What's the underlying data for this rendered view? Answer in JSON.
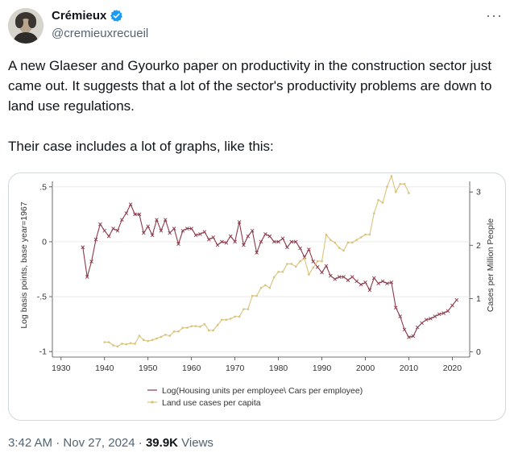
{
  "author": {
    "name": "Crémieux",
    "handle": "@cremieuxrecueil",
    "avatar_icon": "portrait-avatar",
    "verified_icon": "verified-badge-icon"
  },
  "more_icon": "more-options-icon",
  "tweet": {
    "paragraph1": "A new Glaeser and Gyourko paper on productivity in the construction sector just came out. It suggests that a lot of the sector's productivity problems are down to land use regulations.",
    "paragraph2": "Their case includes a lot of graphs, like this:"
  },
  "meta": {
    "time": "3:42 AM",
    "sep": "·",
    "date": "Nov 27, 2024",
    "views_count": "39.9K",
    "views_label": "Views"
  },
  "colors": {
    "series1": "#8b3a4a",
    "series2": "#d9c37a",
    "verified": "#1d9bf0"
  },
  "chart_data": {
    "type": "line",
    "left_axis": {
      "label": "Log basis points, base year=1967",
      "ticks": [
        ".5",
        "0",
        "-.5",
        "-1"
      ],
      "values": [
        0.5,
        0,
        -0.5,
        -1
      ],
      "range": [
        -1.05,
        0.55
      ]
    },
    "right_axis": {
      "label": "Cases per Million People",
      "ticks": [
        "3",
        "2",
        "1",
        "0"
      ],
      "values": [
        3,
        2,
        1,
        0
      ],
      "range": [
        -0.1,
        3.2
      ]
    },
    "x_axis": {
      "ticks": [
        "1930",
        "1940",
        "1950",
        "1960",
        "1970",
        "1980",
        "1990",
        "2000",
        "2010",
        "2020"
      ],
      "values": [
        1930,
        1940,
        1950,
        1960,
        1970,
        1980,
        1990,
        2000,
        2010,
        2020
      ],
      "range": [
        1928,
        2024
      ]
    },
    "legend_position": "bottom",
    "series": [
      {
        "name": "Log(Housing units per employee\\ Cars per employee)",
        "axis": "left",
        "marker": "x",
        "x": [
          1935,
          1936,
          1937,
          1938,
          1939,
          1940,
          1941,
          1942,
          1943,
          1944,
          1945,
          1946,
          1947,
          1948,
          1949,
          1950,
          1951,
          1952,
          1953,
          1954,
          1955,
          1956,
          1957,
          1958,
          1959,
          1960,
          1961,
          1962,
          1963,
          1964,
          1965,
          1966,
          1967,
          1968,
          1969,
          1970,
          1971,
          1972,
          1973,
          1974,
          1975,
          1976,
          1977,
          1978,
          1979,
          1980,
          1981,
          1982,
          1983,
          1984,
          1985,
          1986,
          1987,
          1988,
          1989,
          1990,
          1991,
          1992,
          1993,
          1994,
          1995,
          1996,
          1997,
          1998,
          1999,
          2000,
          2001,
          2002,
          2003,
          2004,
          2005,
          2006,
          2007,
          2008,
          2009,
          2010,
          2011,
          2012,
          2013,
          2014,
          2015,
          2016,
          2017,
          2018,
          2019,
          2020,
          2021
        ],
        "y": [
          -0.05,
          -0.32,
          -0.18,
          0.02,
          0.16,
          0.1,
          0.05,
          0.12,
          0.1,
          0.2,
          0.26,
          0.34,
          0.25,
          0.25,
          0.08,
          0.14,
          0.06,
          0.2,
          0.1,
          0.2,
          0.08,
          0.12,
          -0.02,
          0.1,
          0.12,
          0.12,
          0.06,
          0.07,
          0.09,
          0.02,
          0.04,
          -0.03,
          0.0,
          -0.01,
          0.05,
          0.0,
          0.18,
          -0.03,
          0.05,
          0.1,
          -0.1,
          0.0,
          0.07,
          0.05,
          0.0,
          0.0,
          0.03,
          -0.05,
          0.0,
          0.0,
          -0.06,
          -0.14,
          -0.07,
          -0.18,
          -0.23,
          -0.28,
          -0.22,
          -0.31,
          -0.34,
          -0.32,
          -0.32,
          -0.35,
          -0.32,
          -0.36,
          -0.39,
          -0.37,
          -0.44,
          -0.33,
          -0.38,
          -0.36,
          -0.38,
          -0.37,
          -0.6,
          -0.68,
          -0.8,
          -0.87,
          -0.86,
          -0.78,
          -0.74,
          -0.71,
          -0.7,
          -0.68,
          -0.66,
          -0.65,
          -0.63,
          -0.58,
          -0.53
        ]
      },
      {
        "name": "Land use cases per capita",
        "axis": "right",
        "marker": "dot",
        "x": [
          1940,
          1941,
          1942,
          1943,
          1944,
          1945,
          1946,
          1947,
          1948,
          1949,
          1950,
          1951,
          1952,
          1953,
          1954,
          1955,
          1956,
          1957,
          1958,
          1959,
          1960,
          1961,
          1962,
          1963,
          1964,
          1965,
          1966,
          1967,
          1968,
          1969,
          1970,
          1971,
          1972,
          1973,
          1974,
          1975,
          1976,
          1977,
          1978,
          1979,
          1980,
          1981,
          1982,
          1983,
          1984,
          1985,
          1986,
          1987,
          1988,
          1989,
          1990,
          1991,
          1992,
          1993,
          1994,
          1995,
          1996,
          1997,
          1998,
          1999,
          2000,
          2001,
          2002,
          2003,
          2004,
          2005,
          2006,
          2007,
          2008,
          2009,
          2010
        ],
        "y": [
          0.18,
          0.18,
          0.12,
          0.1,
          0.15,
          0.14,
          0.16,
          0.15,
          0.3,
          0.22,
          0.2,
          0.22,
          0.25,
          0.28,
          0.32,
          0.3,
          0.38,
          0.38,
          0.45,
          0.45,
          0.48,
          0.48,
          0.47,
          0.52,
          0.4,
          0.4,
          0.5,
          0.6,
          0.6,
          0.62,
          0.66,
          0.66,
          0.8,
          0.8,
          1.05,
          1.05,
          1.2,
          1.25,
          1.2,
          1.4,
          1.5,
          1.5,
          1.65,
          1.65,
          1.6,
          1.7,
          1.75,
          1.45,
          1.58,
          1.7,
          1.7,
          2.2,
          2.1,
          2.05,
          1.95,
          1.9,
          2.05,
          2.05,
          2.1,
          2.15,
          2.2,
          2.2,
          2.6,
          2.85,
          2.8,
          3.1,
          3.3,
          3.0,
          3.15,
          3.15,
          2.98
        ]
      }
    ]
  }
}
